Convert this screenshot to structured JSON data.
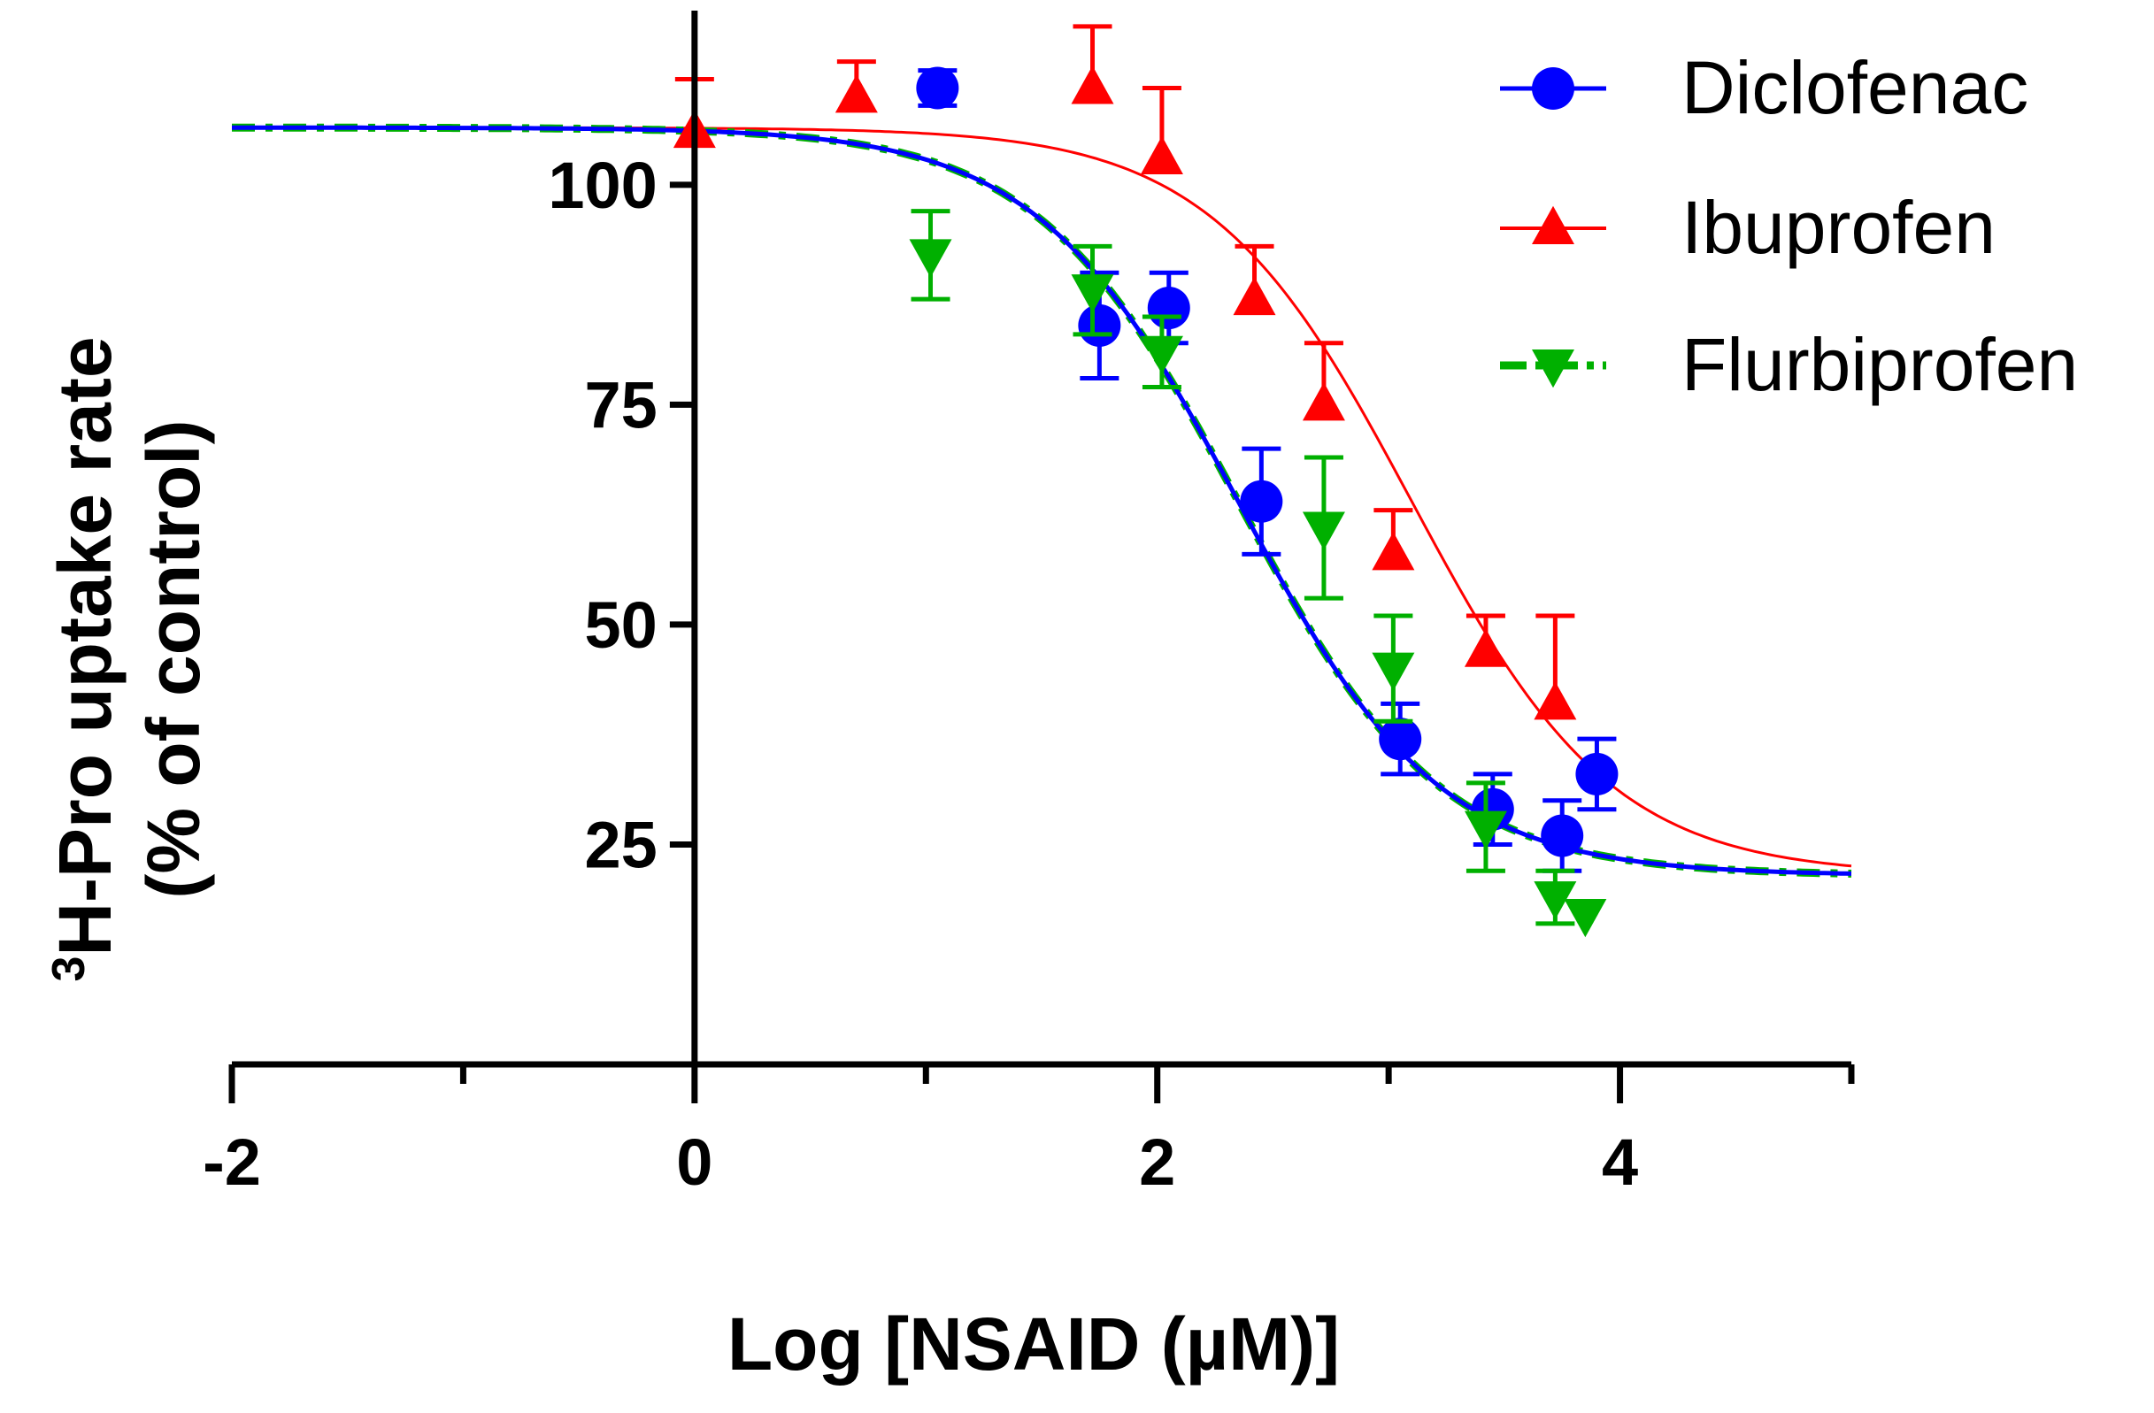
{
  "chart_data": {
    "type": "scatter",
    "title": "",
    "xlabel": "Log [NSAID (µM)]",
    "ylabel_sup": "3",
    "ylabel_line1": "H-Pro uptake rate",
    "ylabel_line2": "(% of control)",
    "xlim": [
      -2,
      5
    ],
    "ylim": [
      0,
      120
    ],
    "x_ticks": [
      -2,
      0,
      2,
      4
    ],
    "x_tick_labels": [
      "-2",
      "0",
      "2",
      "4"
    ],
    "y_ticks": [
      25,
      50,
      75,
      100
    ],
    "y_tick_labels": [
      "25",
      "50",
      "75",
      "100"
    ],
    "legend_position": "top-right",
    "series": [
      {
        "name": "Diclofenac",
        "color": "#0000ff",
        "marker": "circle",
        "points": [
          {
            "x": 1.05,
            "y": 111,
            "err": 2
          },
          {
            "x": 1.75,
            "y": 84,
            "err": 6
          },
          {
            "x": 2.05,
            "y": 86,
            "err": 4
          },
          {
            "x": 2.45,
            "y": 64,
            "err": 6
          },
          {
            "x": 3.05,
            "y": 37,
            "err": 4
          },
          {
            "x": 3.45,
            "y": 29,
            "err": 4
          },
          {
            "x": 3.75,
            "y": 26,
            "err": 4
          },
          {
            "x": 3.9,
            "y": 33,
            "err": 4
          }
        ],
        "fit": {
          "top": 106.5,
          "bottom": 21.5,
          "log_ic50": 2.35,
          "hill": 1.0
        }
      },
      {
        "name": "Ibuprofen",
        "color": "#ff0000",
        "marker": "triangle-up",
        "points": [
          {
            "x": 0.0,
            "y": 106,
            "err": 6
          },
          {
            "x": 0.7,
            "y": 110,
            "err": 4
          },
          {
            "x": 1.72,
            "y": 111,
            "err": 7
          },
          {
            "x": 2.02,
            "y": 103,
            "err": 8
          },
          {
            "x": 2.42,
            "y": 87,
            "err": 6
          },
          {
            "x": 2.72,
            "y": 75,
            "err": 7
          },
          {
            "x": 3.02,
            "y": 58,
            "err": 5
          },
          {
            "x": 3.42,
            "y": 47,
            "err": 4
          },
          {
            "x": 3.72,
            "y": 41,
            "err": 10
          }
        ],
        "fit": {
          "top": 106.5,
          "bottom": 21.5,
          "log_ic50": 3.1,
          "hill": 1.0
        }
      },
      {
        "name": "Flurbiprofen",
        "color": "#00b000",
        "marker": "triangle-down",
        "points": [
          {
            "x": 1.02,
            "y": 92,
            "err": 5
          },
          {
            "x": 1.72,
            "y": 88,
            "err": 5
          },
          {
            "x": 2.02,
            "y": 81,
            "err": 4
          },
          {
            "x": 2.72,
            "y": 61,
            "err": 8
          },
          {
            "x": 3.02,
            "y": 45,
            "err": 6
          },
          {
            "x": 3.42,
            "y": 27,
            "err": 5
          },
          {
            "x": 3.72,
            "y": 19,
            "err": 3
          },
          {
            "x": 3.85,
            "y": 17,
            "err": 0
          }
        ],
        "fit": {
          "top": 106.5,
          "bottom": 21.5,
          "log_ic50": 2.35,
          "hill": 1.0
        }
      }
    ]
  }
}
